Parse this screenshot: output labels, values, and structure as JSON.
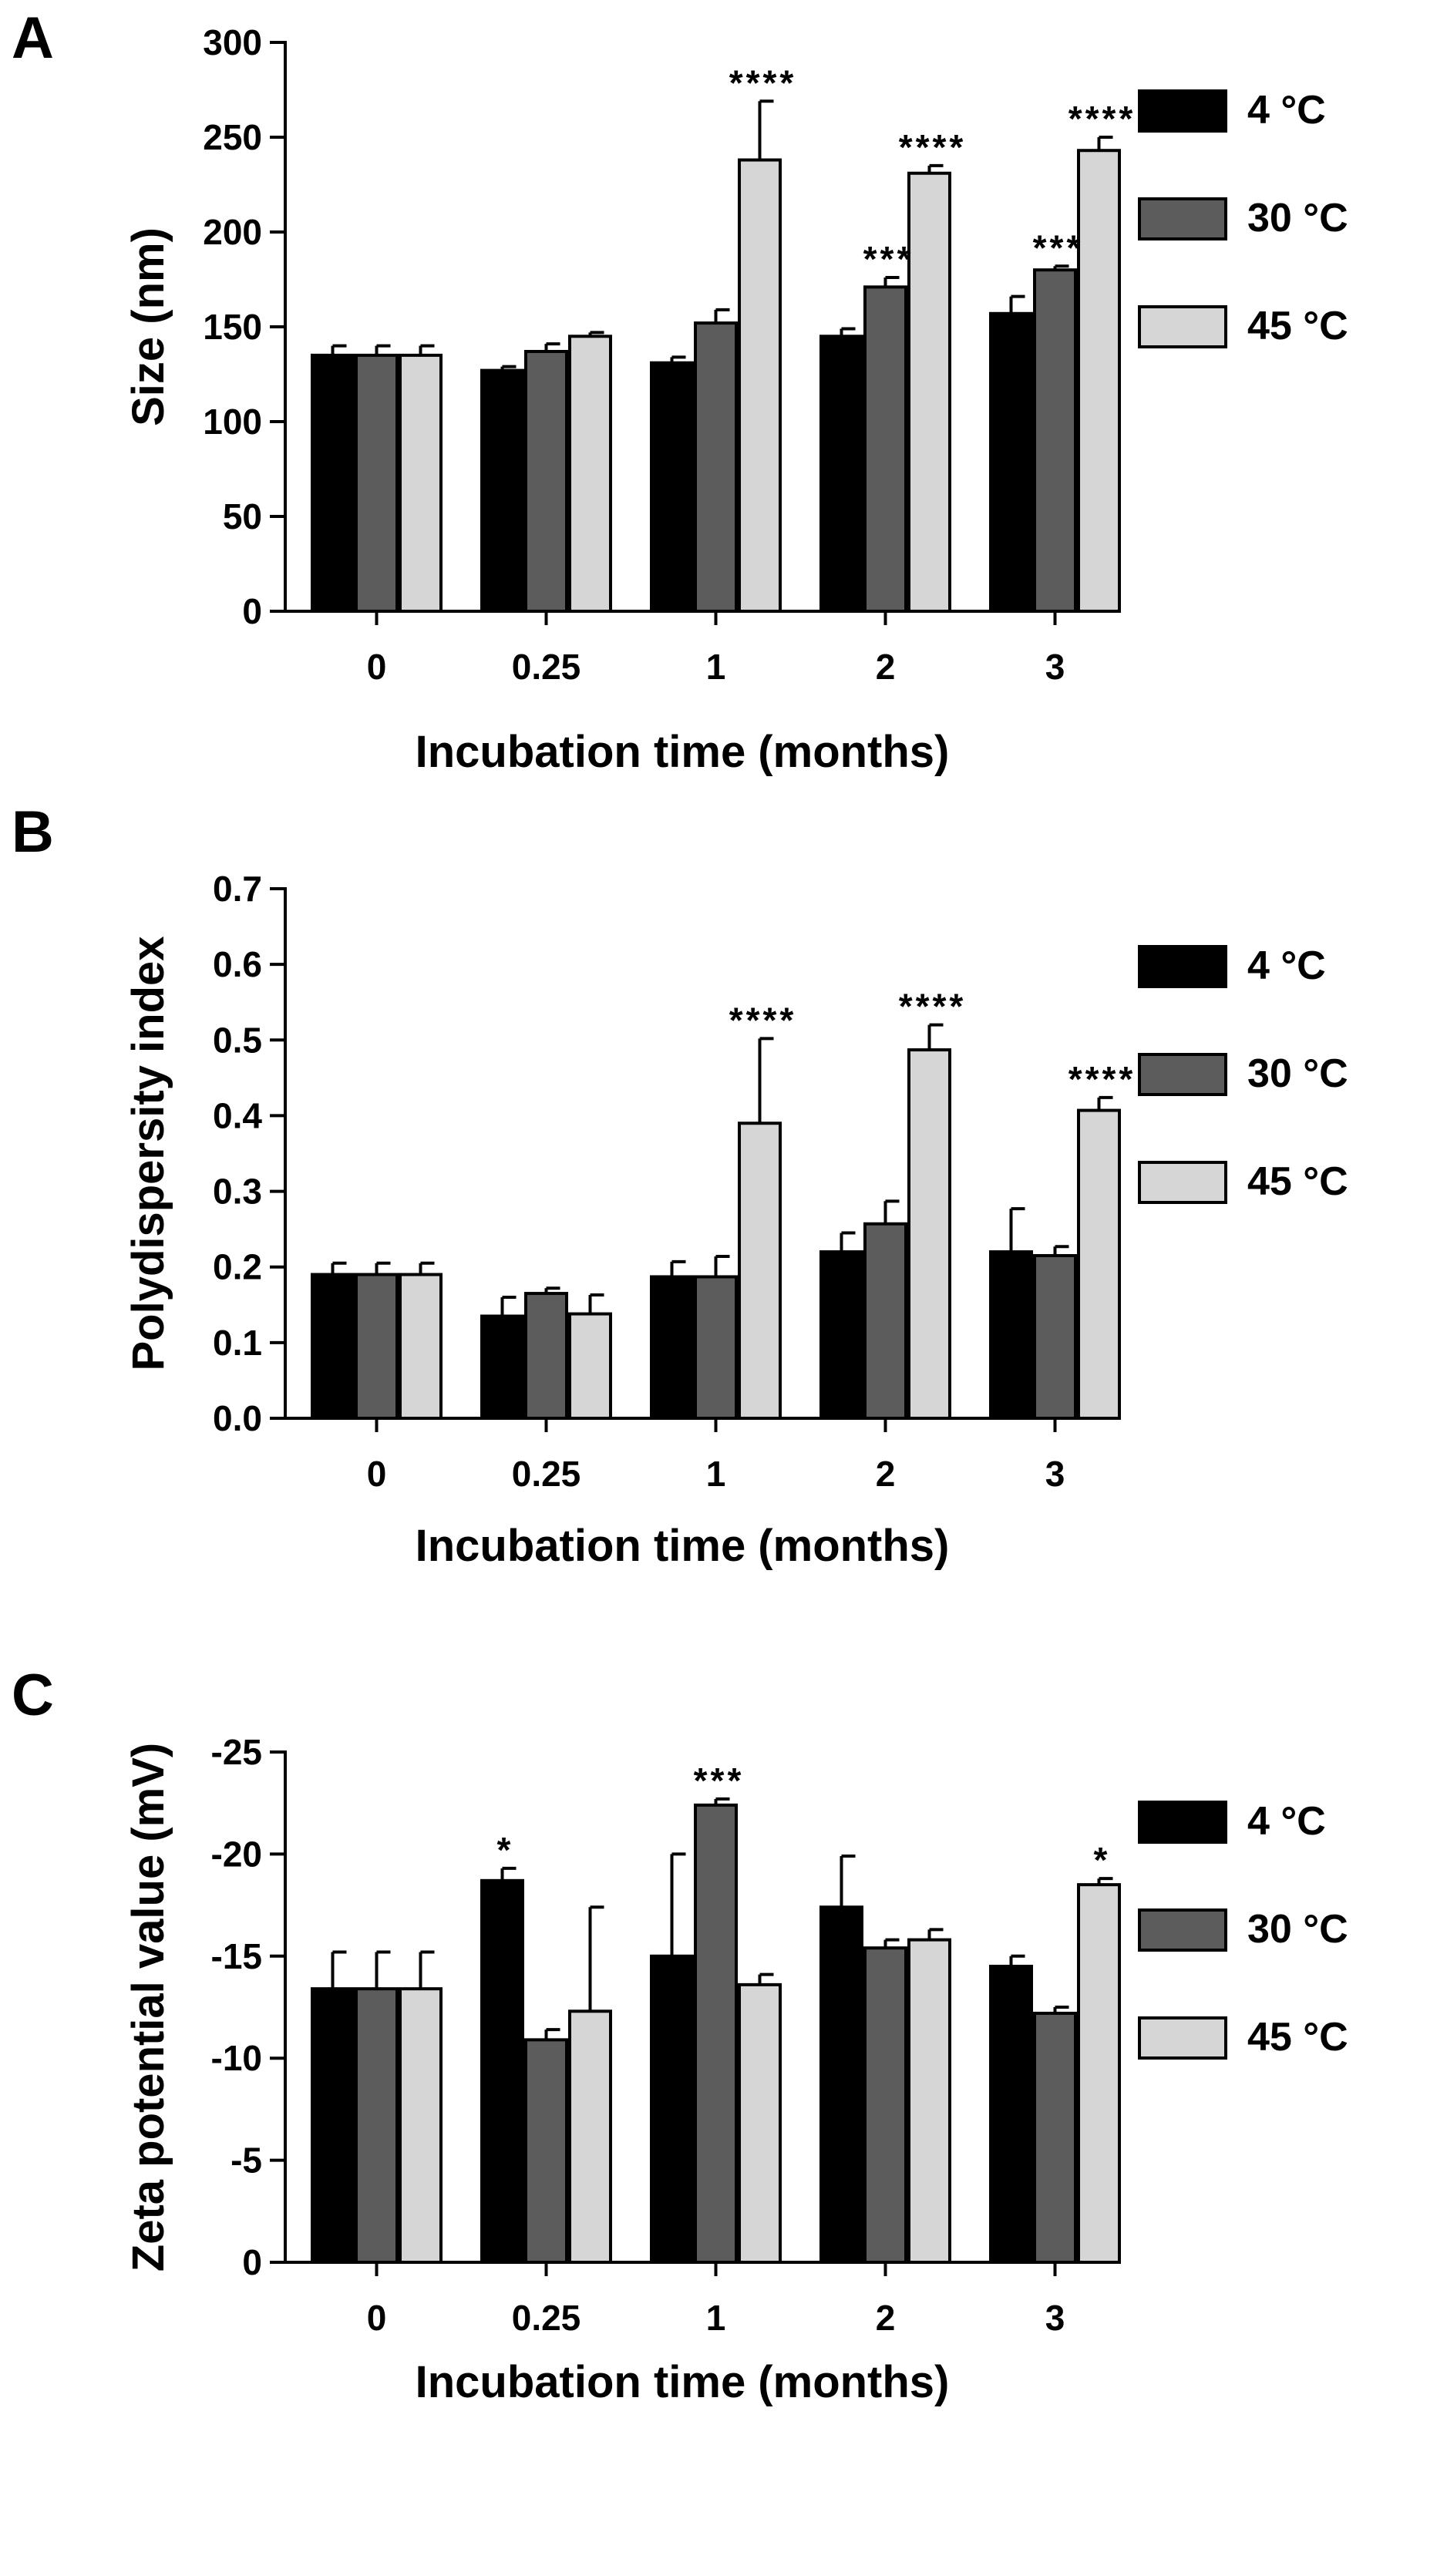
{
  "figure": {
    "series_colors": {
      "4 °C": "#000000",
      "30 °C": "#5c5c5c",
      "45 °C": "#d6d6d6"
    }
  },
  "chart_data": [
    {
      "panel_label": "A",
      "type": "bar",
      "ylabel": "Size (nm)",
      "xlabel": "Incubation time (months)",
      "categories": [
        "0",
        "0.25",
        "1",
        "2",
        "3"
      ],
      "ylim": [
        0,
        300
      ],
      "y_ticks": [
        0,
        50,
        100,
        150,
        200,
        250,
        300
      ],
      "y_tick_labels": [
        "0",
        "50",
        "100",
        "150",
        "200",
        "250",
        "300"
      ],
      "series": [
        {
          "name": "4 °C",
          "values": [
            135,
            127,
            131,
            145,
            157
          ],
          "errors": [
            5,
            2,
            3,
            4,
            9
          ]
        },
        {
          "name": "30 °C",
          "values": [
            135,
            137,
            152,
            171,
            180
          ],
          "errors": [
            5,
            4,
            7,
            5,
            2
          ]
        },
        {
          "name": "45 °C",
          "values": [
            135,
            145,
            238,
            231,
            243
          ],
          "errors": [
            5,
            2,
            31,
            4,
            7
          ]
        }
      ],
      "annotations": [
        {
          "series": 2,
          "category": 2,
          "text": "****"
        },
        {
          "series": 1,
          "category": 3,
          "text": "***"
        },
        {
          "series": 2,
          "category": 3,
          "text": "****"
        },
        {
          "series": 1,
          "category": 4,
          "text": "***"
        },
        {
          "series": 2,
          "category": 4,
          "text": "****"
        }
      ],
      "legend": [
        "4 °C",
        "30 °C",
        "45 °C"
      ]
    },
    {
      "panel_label": "B",
      "type": "bar",
      "ylabel": "Polydispersity index",
      "xlabel": "Incubation time (months)",
      "categories": [
        "0",
        "0.25",
        "1",
        "2",
        "3"
      ],
      "ylim": [
        0,
        0.7
      ],
      "y_ticks": [
        0,
        0.1,
        0.2,
        0.3,
        0.4,
        0.5,
        0.6,
        0.7
      ],
      "y_tick_labels": [
        "0.0",
        "0.1",
        "0.2",
        "0.3",
        "0.4",
        "0.5",
        "0.6",
        "0.7"
      ],
      "series": [
        {
          "name": "4 °C",
          "values": [
            0.19,
            0.135,
            0.187,
            0.22,
            0.22
          ],
          "errors": [
            0.015,
            0.025,
            0.02,
            0.025,
            0.057
          ]
        },
        {
          "name": "30 °C",
          "values": [
            0.19,
            0.165,
            0.187,
            0.257,
            0.215
          ],
          "errors": [
            0.015,
            0.007,
            0.027,
            0.03,
            0.012
          ]
        },
        {
          "name": "45 °C",
          "values": [
            0.19,
            0.138,
            0.39,
            0.487,
            0.407
          ],
          "errors": [
            0.015,
            0.025,
            0.112,
            0.033,
            0.017
          ]
        }
      ],
      "annotations": [
        {
          "series": 2,
          "category": 2,
          "text": "****"
        },
        {
          "series": 2,
          "category": 3,
          "text": "****"
        },
        {
          "series": 2,
          "category": 4,
          "text": "****"
        }
      ],
      "legend": [
        "4 °C",
        "30 °C",
        "45 °C"
      ]
    },
    {
      "panel_label": "C",
      "type": "bar",
      "ylabel": "Zeta potential value (mV)",
      "xlabel": "Incubation time (months)",
      "categories": [
        "0",
        "0.25",
        "1",
        "2",
        "3"
      ],
      "ylim": [
        0,
        25
      ],
      "y_ticks": [
        0,
        5,
        10,
        15,
        20,
        25
      ],
      "y_tick_labels": [
        "0",
        "-5",
        "-10",
        "-15",
        "-20",
        "-25"
      ],
      "series": [
        {
          "name": "4 °C",
          "values": [
            13.4,
            18.7,
            15.0,
            17.4,
            14.5
          ],
          "errors": [
            1.8,
            0.6,
            5.0,
            2.5,
            0.5
          ]
        },
        {
          "name": "30 °C",
          "values": [
            13.4,
            10.9,
            22.4,
            15.4,
            12.2
          ],
          "errors": [
            1.8,
            0.5,
            0.3,
            0.4,
            0.3
          ]
        },
        {
          "name": "45 °C",
          "values": [
            13.4,
            12.3,
            13.6,
            15.8,
            18.5
          ],
          "errors": [
            1.8,
            5.1,
            0.5,
            0.5,
            0.3
          ]
        }
      ],
      "annotations": [
        {
          "series": 0,
          "category": 1,
          "text": "*"
        },
        {
          "series": 1,
          "category": 2,
          "text": "***"
        },
        {
          "series": 2,
          "category": 4,
          "text": "*"
        }
      ],
      "legend": [
        "4 °C",
        "30 °C",
        "45 °C"
      ]
    }
  ]
}
